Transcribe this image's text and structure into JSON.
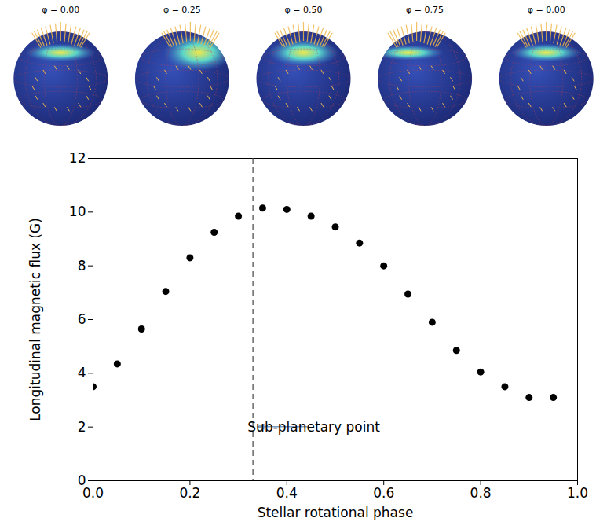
{
  "chart_data": {
    "type": "scatter",
    "x_label": "Stellar rotational phase",
    "y_label": "Longitudinal magnetic flux (G)",
    "x": [
      0,
      0.05,
      0.1,
      0.15,
      0.2,
      0.25,
      0.3,
      0.35,
      0.4,
      0.45,
      0.5,
      0.55,
      0.6,
      0.65,
      0.7,
      0.75,
      0.8,
      0.85,
      0.9,
      0.95
    ],
    "values": [
      3.5,
      4.35,
      5.65,
      7.05,
      8.3,
      9.25,
      9.85,
      10.15,
      10.1,
      9.85,
      9.45,
      8.85,
      8.0,
      6.95,
      5.9,
      4.85,
      4.05,
      3.5,
      3.1,
      3.1
    ],
    "color": "#000000",
    "marker": "circle",
    "xlim": [
      0,
      1
    ],
    "xticks": [
      {
        "value": 0,
        "label": "0.0"
      },
      0.2,
      0.4,
      0.6,
      0.8,
      {
        "value": 1,
        "label": "1.0"
      }
    ],
    "ylim": [
      0,
      12
    ],
    "yticks": [
      0,
      2,
      4,
      6,
      8,
      10,
      12
    ],
    "grid": false,
    "annotations": [
      {
        "text": "Sub-planetary point",
        "x": 0.33,
        "y": 2
      }
    ],
    "panel_labels": [
      "φ = 0.00",
      "φ = 0.25",
      "φ = 0.50",
      "φ = 0.75",
      "φ = 0.00"
    ]
  }
}
